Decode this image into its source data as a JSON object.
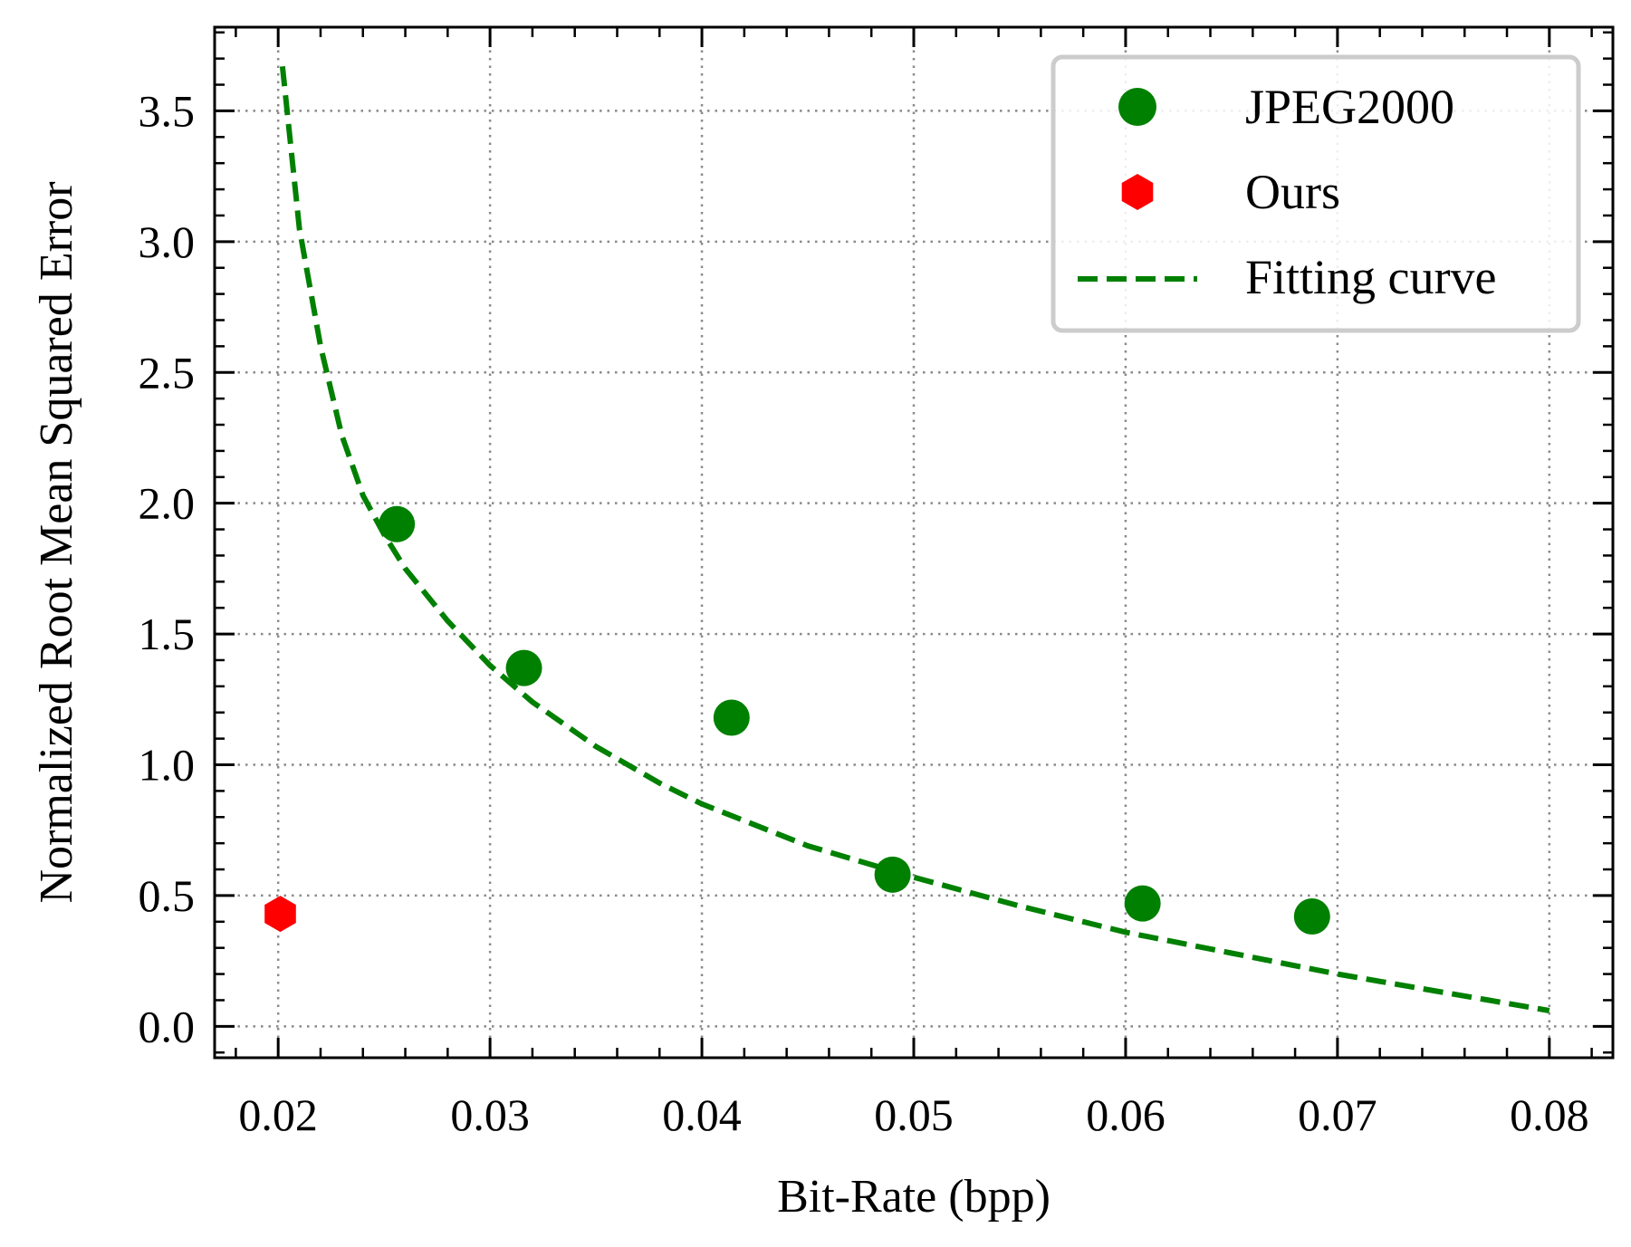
{
  "chart_data": {
    "type": "scatter",
    "xlabel": "Bit-Rate (bpp)",
    "ylabel": "Normalized Root Mean Squared Error",
    "xlim": [
      0.017,
      0.083
    ],
    "ylim": [
      -0.12,
      3.82
    ],
    "x_ticks": [
      0.02,
      0.03,
      0.04,
      0.05,
      0.06,
      0.07,
      0.08
    ],
    "x_tick_labels": [
      "0.02",
      "0.03",
      "0.04",
      "0.05",
      "0.06",
      "0.07",
      "0.08"
    ],
    "y_ticks": [
      0.0,
      0.5,
      1.0,
      1.5,
      2.0,
      2.5,
      3.0,
      3.5
    ],
    "y_tick_labels": [
      "0.0",
      "0.5",
      "1.0",
      "1.5",
      "2.0",
      "2.5",
      "3.0",
      "3.5"
    ],
    "grid": true,
    "legend_position": "top-right",
    "series": [
      {
        "name": "JPEG2000",
        "kind": "scatter",
        "marker": "circle",
        "color": "#008000",
        "x": [
          0.0256,
          0.0316,
          0.0414,
          0.049,
          0.0608,
          0.0688
        ],
        "y": [
          1.92,
          1.37,
          1.18,
          0.58,
          0.47,
          0.42
        ]
      },
      {
        "name": "Ours",
        "kind": "scatter",
        "marker": "hexagon",
        "color": "#ff0000",
        "x": [
          0.0201
        ],
        "y": [
          0.43
        ]
      },
      {
        "name": "Fitting curve",
        "kind": "line",
        "style": "dashed",
        "color": "#008000",
        "x": [
          0.0202,
          0.021,
          0.022,
          0.023,
          0.024,
          0.025,
          0.026,
          0.028,
          0.03,
          0.032,
          0.035,
          0.038,
          0.04,
          0.045,
          0.05,
          0.055,
          0.06,
          0.065,
          0.07,
          0.075,
          0.08
        ],
        "y": [
          3.67,
          3.05,
          2.6,
          2.26,
          2.03,
          1.88,
          1.75,
          1.55,
          1.38,
          1.24,
          1.07,
          0.93,
          0.85,
          0.69,
          0.57,
          0.46,
          0.36,
          0.28,
          0.2,
          0.13,
          0.06
        ]
      }
    ]
  }
}
